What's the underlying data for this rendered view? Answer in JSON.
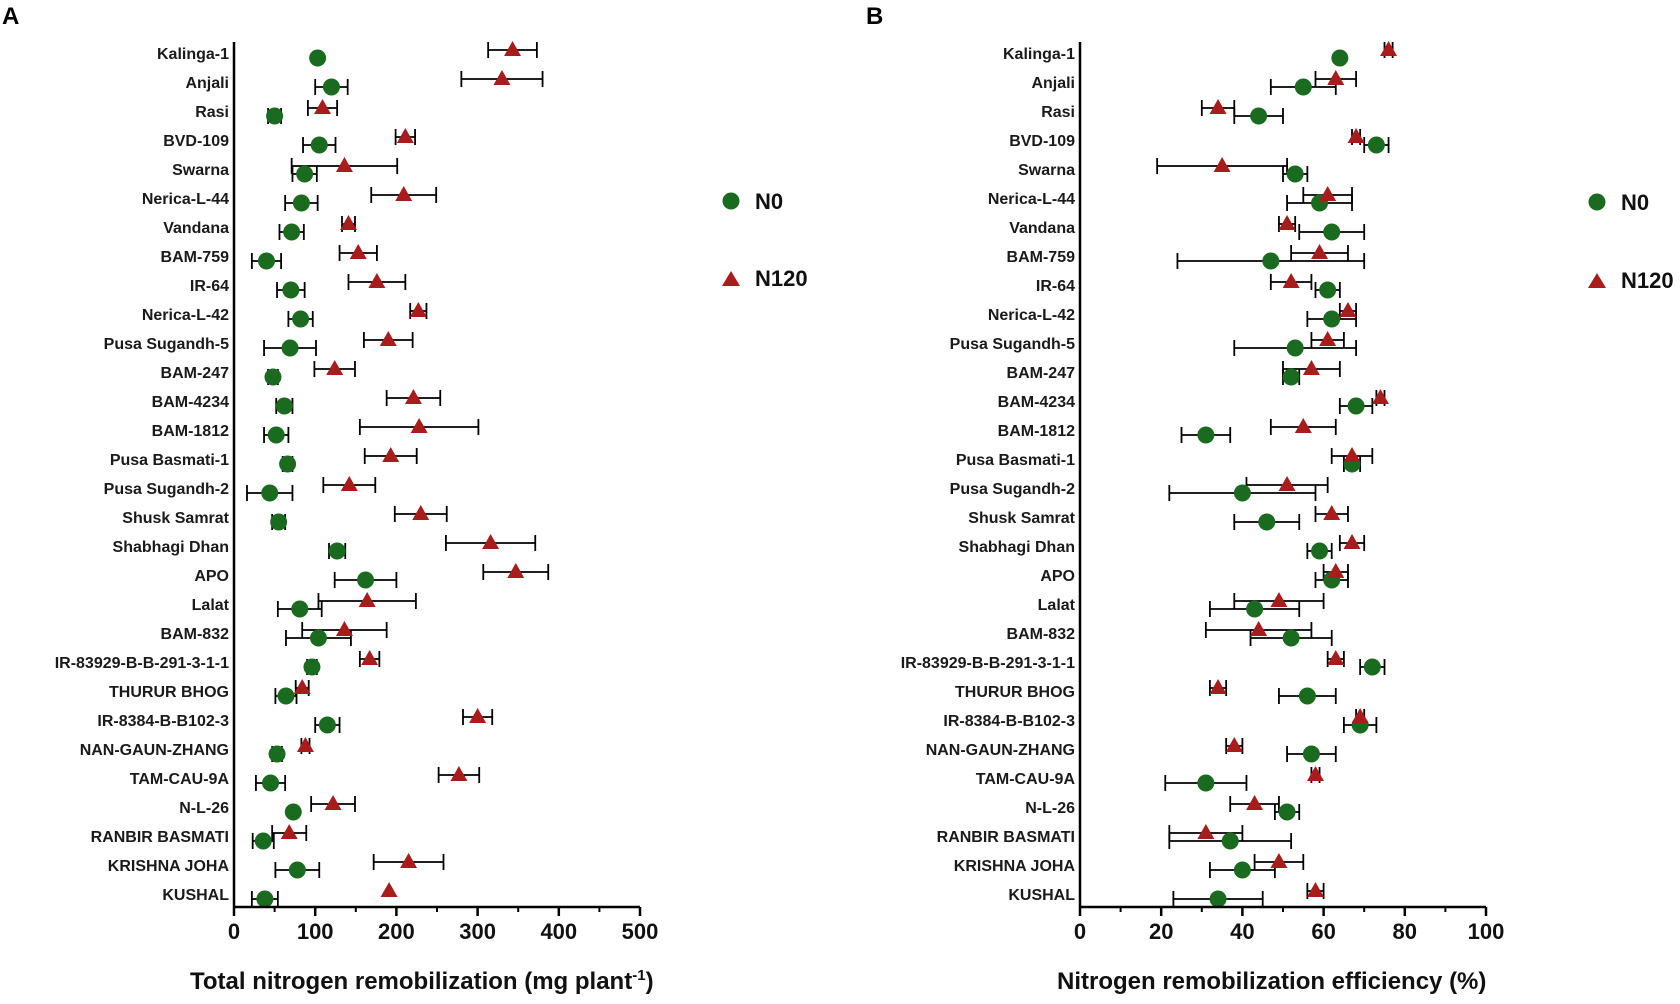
{
  "colors": {
    "n0": "#1a6b1f",
    "n120": "#a81c1c",
    "axis": "#000000",
    "errorbar": "#000000"
  },
  "chart_data": [
    {
      "panel_label": "A",
      "type": "scatter",
      "orientation": "horizontal",
      "xlabel": "Total nitrogen remobilization (mg plant",
      "xlabel_sup": "-1",
      "xlabel_end": ")",
      "xlim": [
        0,
        500
      ],
      "xticks": [
        0,
        100,
        200,
        300,
        400,
        500
      ],
      "legend": [
        {
          "name": "N0",
          "marker": "circle"
        },
        {
          "name": "N120",
          "marker": "triangle"
        }
      ],
      "categories": [
        "Kalinga-1",
        "Anjali",
        "Rasi",
        "BVD-109",
        "Swarna",
        "Nerica-L-44",
        "Vandana",
        "BAM-759",
        "IR-64",
        "Nerica-L-42",
        "Pusa Sugandh-5",
        "BAM-247",
        "BAM-4234",
        "BAM-1812",
        "Pusa Basmati-1",
        "Pusa Sugandh-2",
        "Shusk Samrat",
        "Shabhagi Dhan",
        "APO",
        "Lalat",
        "BAM-832",
        "IR-83929-B-B-291-3-1-1",
        "THURUR BHOG",
        "IR-8384-B-B102-3",
        "NAN-GAUN-ZHANG",
        "TAM-CAU-9A",
        "N-L-26",
        "RANBIR BASMATI",
        "KRISHNA JOHA",
        "KUSHAL"
      ],
      "series": [
        {
          "name": "N0",
          "values": [
            103,
            120,
            50,
            105,
            87,
            83,
            71,
            40,
            70,
            82,
            69,
            48,
            62,
            52,
            66,
            44,
            55,
            127,
            162,
            81,
            104,
            96,
            64,
            115,
            53,
            45,
            73,
            36,
            78,
            38
          ],
          "err": [
            0,
            20,
            8,
            20,
            15,
            20,
            15,
            18,
            17,
            15,
            32,
            6,
            10,
            15,
            6,
            28,
            8,
            10,
            38,
            27,
            40,
            6,
            13,
            15,
            6,
            18,
            0,
            13,
            27,
            16
          ]
        },
        {
          "name": "N120",
          "values": [
            343,
            330,
            109,
            211,
            136,
            209,
            141,
            153,
            176,
            227,
            190,
            124,
            221,
            228,
            193,
            142,
            230,
            316,
            347,
            164,
            136,
            167,
            84,
            300,
            88,
            277,
            122,
            68,
            215,
            191
          ],
          "err": [
            30,
            50,
            18,
            12,
            65,
            40,
            8,
            23,
            35,
            10,
            30,
            25,
            33,
            73,
            32,
            32,
            32,
            55,
            40,
            60,
            52,
            12,
            8,
            18,
            5,
            25,
            27,
            21,
            43,
            0
          ]
        }
      ]
    },
    {
      "panel_label": "B",
      "type": "scatter",
      "orientation": "horizontal",
      "xlabel": "Nitrogen remobilization efficiency (%)",
      "xlim": [
        0,
        100
      ],
      "xticks": [
        0,
        20,
        40,
        60,
        80,
        100
      ],
      "legend": [
        {
          "name": "N0",
          "marker": "circle"
        },
        {
          "name": "N120",
          "marker": "triangle"
        }
      ],
      "categories": [
        "Kalinga-1",
        "Anjali",
        "Rasi",
        "BVD-109",
        "Swarna",
        "Nerica-L-44",
        "Vandana",
        "BAM-759",
        "IR-64",
        "Nerica-L-42",
        "Pusa Sugandh-5",
        "BAM-247",
        "BAM-4234",
        "BAM-1812",
        "Pusa Basmati-1",
        "Pusa Sugandh-2",
        "Shusk Samrat",
        "Shabhagi Dhan",
        "APO",
        "Lalat",
        "BAM-832",
        "IR-83929-B-B-291-3-1-1",
        "THURUR BHOG",
        "IR-8384-B-B102-3",
        "NAN-GAUN-ZHANG",
        "TAM-CAU-9A",
        "N-L-26",
        "RANBIR BASMATI",
        "KRISHNA JOHA",
        "KUSHAL"
      ],
      "series": [
        {
          "name": "N0",
          "values": [
            64,
            55,
            44,
            73,
            53,
            59,
            62,
            47,
            61,
            62,
            53,
            52,
            68,
            31,
            67,
            40,
            46,
            59,
            62,
            43,
            52,
            72,
            56,
            69,
            57,
            31,
            51,
            37,
            40,
            34
          ],
          "err": [
            0,
            8,
            6,
            3,
            3,
            8,
            8,
            23,
            3,
            6,
            15,
            2,
            4,
            6,
            2,
            18,
            8,
            3,
            4,
            11,
            10,
            3,
            7,
            4,
            6,
            10,
            3,
            15,
            8,
            11
          ]
        },
        {
          "name": "N120",
          "values": [
            76,
            63,
            34,
            68,
            35,
            61,
            51,
            59,
            52,
            66,
            61,
            57,
            74,
            55,
            67,
            51,
            62,
            67,
            63,
            49,
            44,
            63,
            34,
            69,
            38,
            58,
            43,
            31,
            49,
            58
          ],
          "err": [
            1,
            5,
            4,
            1,
            16,
            6,
            2,
            7,
            5,
            2,
            4,
            7,
            1,
            8,
            5,
            10,
            4,
            3,
            3,
            11,
            13,
            2,
            2,
            1,
            2,
            1,
            6,
            9,
            6,
            2
          ]
        }
      ]
    }
  ]
}
